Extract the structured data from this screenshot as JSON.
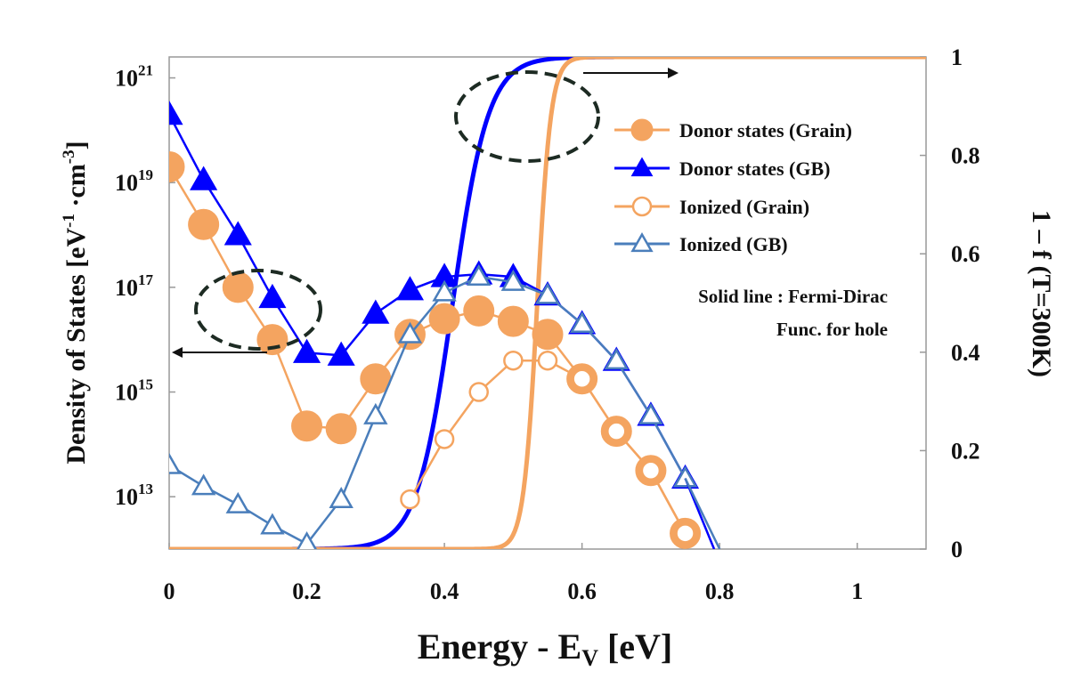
{
  "chart_data": {
    "type": "line",
    "xlabel": {
      "main": "Energy - E",
      "sub": "V",
      "unit": " [eV]"
    },
    "ylabel": {
      "pre": "Density of States [eV",
      "sup1": "-1",
      "mid": " ·cm",
      "sup2": "-3",
      "post": "]"
    },
    "y2label": "1 – f (T=300K)",
    "xlim": [
      0,
      1.1
    ],
    "ylim_log": [
      12,
      21.4
    ],
    "y2lim": [
      0,
      1
    ],
    "y_scale": "log",
    "x_ticks": [
      {
        "v": 0,
        "label": "0"
      },
      {
        "v": 0.2,
        "label": "0.2"
      },
      {
        "v": 0.4,
        "label": "0.4"
      },
      {
        "v": 0.6,
        "label": "0.6"
      },
      {
        "v": 0.8,
        "label": "0.8"
      },
      {
        "v": 1,
        "label": "1"
      }
    ],
    "y_ticks": [
      {
        "exp": 21,
        "base": "10",
        "sup": "21"
      },
      {
        "exp": 19,
        "base": "10",
        "sup": "19"
      },
      {
        "exp": 17,
        "base": "10",
        "sup": "17"
      },
      {
        "exp": 15,
        "base": "10",
        "sup": "15"
      },
      {
        "exp": 13,
        "base": "10",
        "sup": "13"
      }
    ],
    "y2_ticks": [
      {
        "v": 0,
        "label": "0"
      },
      {
        "v": 0.2,
        "label": "0.2"
      },
      {
        "v": 0.4,
        "label": "0.4"
      },
      {
        "v": 0.6,
        "label": "0.6"
      },
      {
        "v": 0.8,
        "label": "0.8"
      },
      {
        "v": 1,
        "label": "1"
      }
    ],
    "series": [
      {
        "name": "Donor states (Grain)",
        "marker": "circle",
        "filled": true,
        "color": "#f4a460",
        "axis": "left",
        "x": [
          0,
          0.05,
          0.1,
          0.15,
          0.2,
          0.25,
          0.3,
          0.35,
          0.4,
          0.45,
          0.5,
          0.55,
          0.6,
          0.65,
          0.7,
          0.75
        ],
        "log10_y": [
          19.3,
          18.2,
          17.0,
          16.0,
          14.35,
          14.3,
          15.25,
          16.1,
          16.4,
          16.55,
          16.35,
          16.1,
          15.25,
          14.25,
          13.5,
          12.3
        ]
      },
      {
        "name": "Donor states (GB)",
        "marker": "triangle",
        "filled": true,
        "color": "#0000ff",
        "axis": "left",
        "x": [
          0,
          0.05,
          0.1,
          0.15,
          0.2,
          0.25,
          0.3,
          0.35,
          0.4,
          0.45,
          0.5,
          0.55,
          0.6,
          0.65,
          0.7,
          0.75
        ],
        "log10_y": [
          20.3,
          19.05,
          18.0,
          16.8,
          15.75,
          15.7,
          16.5,
          16.95,
          17.2,
          17.25,
          17.2,
          16.85,
          16.3,
          15.6,
          14.55,
          13.35
        ]
      },
      {
        "name": "Ionized (Grain)",
        "marker": "circle",
        "filled": false,
        "color": "#f4a460",
        "axis": "left",
        "x": [
          0.35,
          0.4,
          0.45,
          0.5,
          0.55,
          0.6,
          0.65,
          0.7,
          0.75
        ],
        "log10_y": [
          12.95,
          14.1,
          15.0,
          15.6,
          15.6,
          15.25,
          14.25,
          13.5,
          12.3
        ]
      },
      {
        "name": "Ionized (GB)",
        "marker": "triangle",
        "filled": false,
        "color": "#4a7ebb",
        "axis": "left",
        "x": [
          0,
          0.05,
          0.1,
          0.15,
          0.2,
          0.25,
          0.3,
          0.35,
          0.4,
          0.45,
          0.5,
          0.55,
          0.6,
          0.65,
          0.7,
          0.75
        ],
        "log10_y": [
          13.6,
          13.2,
          12.85,
          12.45,
          12.1,
          12.95,
          14.55,
          16.1,
          16.9,
          17.2,
          17.1,
          16.85,
          16.3,
          15.6,
          14.55,
          13.35
        ]
      }
    ],
    "fermi_curves": [
      {
        "name": "Fermi-Dirac GB",
        "color": "#0000ff",
        "axis": "right",
        "center": 0.412,
        "kT": 0.02585
      },
      {
        "name": "Fermi-Dirac Grain",
        "color": "#f4a460",
        "axis": "right",
        "center": 0.535,
        "kT": 0.01
      }
    ],
    "annotation": {
      "line1": "Solid line : Fermi-Dirac",
      "line2": "Func. for hole"
    },
    "legend_position": "top-right",
    "grid": false
  }
}
